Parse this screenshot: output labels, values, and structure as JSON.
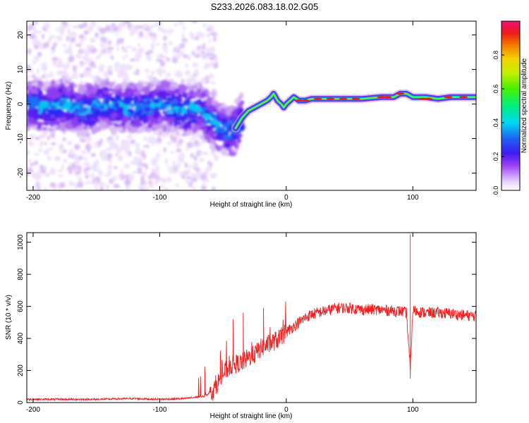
{
  "title": "S233.2026.083.18.02.G05",
  "chart_data": [
    {
      "type": "heatmap",
      "xlabel": "Height of straight line (km)",
      "ylabel": "Frequency (Hz)",
      "xlim": [
        -205,
        150
      ],
      "ylim": [
        -25,
        24
      ],
      "xticks": [
        -200,
        -100,
        0,
        100
      ],
      "yticks": [
        -20,
        -10,
        0,
        10,
        20
      ],
      "colorbar": {
        "label": "Normalized spectral amplitude",
        "range": [
          0,
          1
        ],
        "ticks": [
          "0.0",
          "0.2",
          "0.4",
          "0.6",
          "0.8"
        ]
      },
      "ridge": {
        "name": "frequency track",
        "x": [
          -205,
          -190,
          -175,
          -160,
          -145,
          -130,
          -115,
          -100,
          -90,
          -80,
          -70,
          -62,
          -55,
          -50,
          -45,
          -40,
          -35,
          -30,
          -25,
          -20,
          -15,
          -12,
          -10,
          -7,
          -4,
          -2,
          0,
          3,
          6,
          10,
          15,
          20,
          30,
          45,
          60,
          75,
          85,
          90,
          95,
          100,
          110,
          120,
          130,
          140,
          150
        ],
        "y": [
          0,
          -1,
          0,
          -2,
          0,
          -1,
          -1,
          0,
          -1,
          -2,
          -1,
          -4,
          -6,
          -7,
          -8,
          -7,
          -4,
          -2,
          -1,
          0,
          1,
          2,
          3,
          1,
          0,
          -1,
          0,
          1,
          2,
          1,
          1,
          1.5,
          1.5,
          1.5,
          1.5,
          2,
          2,
          3,
          3,
          2,
          2,
          1.5,
          2,
          2,
          2
        ]
      }
    },
    {
      "type": "line",
      "xlabel": "Height of straight line (km)",
      "ylabel": "SNR (10 * v/v)",
      "xlim": [
        -205,
        150
      ],
      "ylim": [
        0,
        1060
      ],
      "xticks": [
        -200,
        -100,
        0,
        100
      ],
      "yticks": [
        0,
        200,
        400,
        600,
        800,
        1000
      ],
      "series": [
        {
          "color": "#ee2222",
          "x": [
            -205,
            -180,
            -150,
            -120,
            -100,
            -80,
            -65,
            -58,
            -52,
            -48,
            -44,
            -40,
            -35,
            -30,
            -25,
            -20,
            -15,
            -10,
            -5,
            0,
            5,
            10,
            15,
            20,
            25,
            30,
            35,
            40,
            50,
            60,
            70,
            80,
            90,
            95,
            98,
            100,
            102,
            110,
            120,
            130,
            140,
            150
          ],
          "values": [
            20,
            20,
            20,
            25,
            20,
            25,
            40,
            70,
            150,
            200,
            230,
            240,
            250,
            280,
            300,
            340,
            360,
            380,
            400,
            440,
            470,
            500,
            530,
            550,
            560,
            570,
            580,
            590,
            590,
            580,
            580,
            575,
            570,
            560,
            200,
            580,
            570,
            560,
            560,
            555,
            545,
            540
          ]
        }
      ],
      "annotations": [
        {
          "x": 98,
          "y": 1050,
          "type": "spike"
        },
        {
          "x": 98,
          "y": 150,
          "type": "dip"
        },
        {
          "x": -42,
          "y": 520,
          "type": "spike"
        },
        {
          "x": -34,
          "y": 560,
          "type": "spike"
        },
        {
          "x": -18,
          "y": 590,
          "type": "spike"
        }
      ]
    }
  ]
}
